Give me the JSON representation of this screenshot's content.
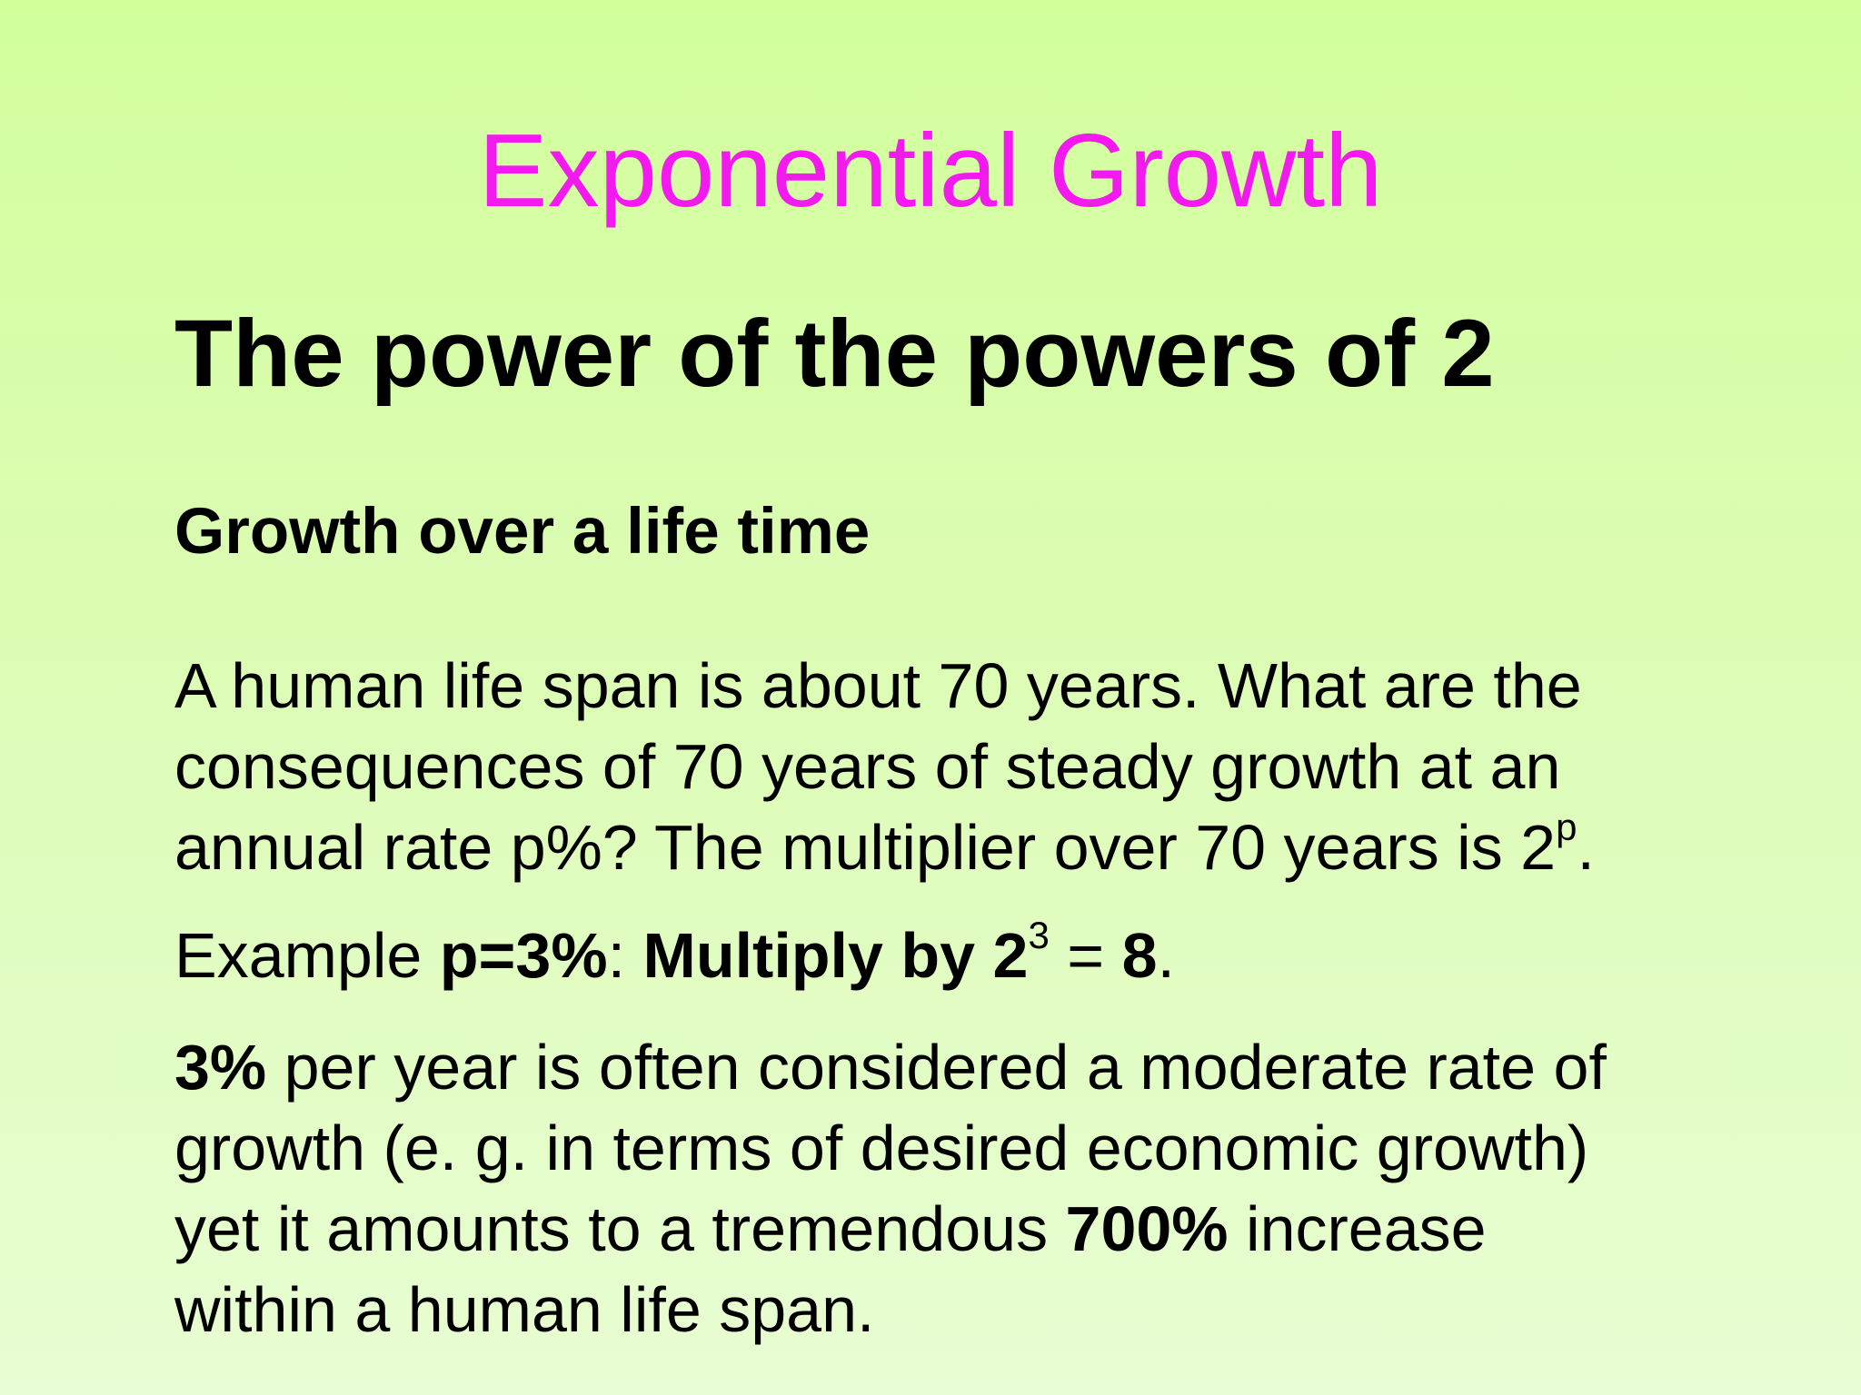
{
  "slide": {
    "title": "Exponential Growth",
    "heading": "The power of the powers of 2",
    "subheading": "Growth over a life time",
    "paragraph1": {
      "line1": "A human life span is about 70 years. What are the",
      "line2": "consequences of 70 years of steady growth at an",
      "line3_text": "annual rate p%? The multiplier over 70 years is 2",
      "line3_sup": "p",
      "line3_end": "."
    },
    "example": {
      "prefix": "Example ",
      "rate": "p=3%",
      "colon": ": ",
      "multiply_base": "Multiply by 2",
      "exponent": "3",
      "equals": " = ",
      "result": "8",
      "end": "."
    },
    "paragraph3": {
      "rate": "3%",
      "line1_rest": " per year is often considered a moderate rate of",
      "line2": "growth (e. g. in terms of desired economic growth)",
      "line3_start": "yet it amounts to a tremendous ",
      "increase": "700%",
      "line3_end": " increase",
      "line4": "within a human life span."
    }
  }
}
